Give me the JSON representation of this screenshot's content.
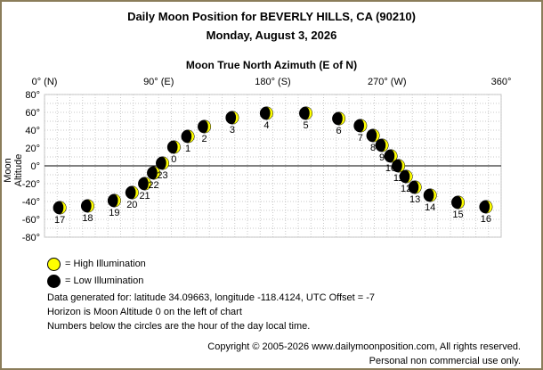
{
  "title": "Daily Moon Position for BEVERLY HILLS, CA (90210)",
  "subtitle": "Monday, August 3, 2026",
  "chart_data": {
    "type": "scatter",
    "title": "Daily Moon Position for BEVERLY HILLS, CA (90210)",
    "subtitle": "Monday, August 3, 2026",
    "xlabel": "Moon True North Azimuth (E of N)",
    "ylabel": "Moon Altitude",
    "xlim": [
      0,
      360
    ],
    "ylim": [
      -80,
      80
    ],
    "x_ticks": [
      "0° (N)",
      "90° (E)",
      "180° (S)",
      "270° (W)",
      "360°"
    ],
    "y_ticks": [
      "80°",
      "60°",
      "40°",
      "20°",
      "0°",
      "-20°",
      "-40°",
      "-60°",
      "-80°"
    ],
    "grid": true,
    "points": [
      {
        "hour": "0",
        "az": 102,
        "alt": 21
      },
      {
        "hour": "1",
        "az": 113,
        "alt": 33
      },
      {
        "hour": "2",
        "az": 126,
        "alt": 44
      },
      {
        "hour": "3",
        "az": 148,
        "alt": 54
      },
      {
        "hour": "4",
        "az": 175,
        "alt": 59
      },
      {
        "hour": "5",
        "az": 206,
        "alt": 59
      },
      {
        "hour": "6",
        "az": 232,
        "alt": 53
      },
      {
        "hour": "7",
        "az": 249,
        "alt": 45
      },
      {
        "hour": "8",
        "az": 259,
        "alt": 34
      },
      {
        "hour": "9",
        "az": 266,
        "alt": 23
      },
      {
        "hour": "10",
        "az": 273,
        "alt": 11
      },
      {
        "hour": "11",
        "az": 279,
        "alt": 0
      },
      {
        "hour": "12",
        "az": 285,
        "alt": -12
      },
      {
        "hour": "13",
        "az": 292,
        "alt": -24
      },
      {
        "hour": "14",
        "az": 304,
        "alt": -33
      },
      {
        "hour": "15",
        "az": 326,
        "alt": -41
      },
      {
        "hour": "16",
        "az": 348,
        "alt": -46
      },
      {
        "hour": "17",
        "az": 12,
        "alt": -47
      },
      {
        "hour": "18",
        "az": 34,
        "alt": -45
      },
      {
        "hour": "19",
        "az": 55,
        "alt": -39
      },
      {
        "hour": "20",
        "az": 69,
        "alt": -30
      },
      {
        "hour": "21",
        "az": 79,
        "alt": -20
      },
      {
        "hour": "22",
        "az": 86,
        "alt": -8
      },
      {
        "hour": "23",
        "az": 93,
        "alt": 3
      }
    ]
  },
  "legend": {
    "high": "= High Illumination",
    "low": "= Low Illumination",
    "high_color": "#ffff00",
    "low_color": "#000000"
  },
  "notes": [
    "Data generated for: latitude 34.09663, longitude -118.4124, UTC Offset = -7",
    "Horizon is Moon Altitude 0 on the left of chart",
    "Numbers below the circles are the hour of the day local time."
  ],
  "copyright": "Copyright © 2005-2026 www.dailymoonposition.com, All rights reserved.",
  "copyright2": "Personal non commercial use only.",
  "colors": {
    "frame": "#8b7d5a",
    "grid": "#c0c0c0",
    "moon_lit": "#ffff00"
  }
}
